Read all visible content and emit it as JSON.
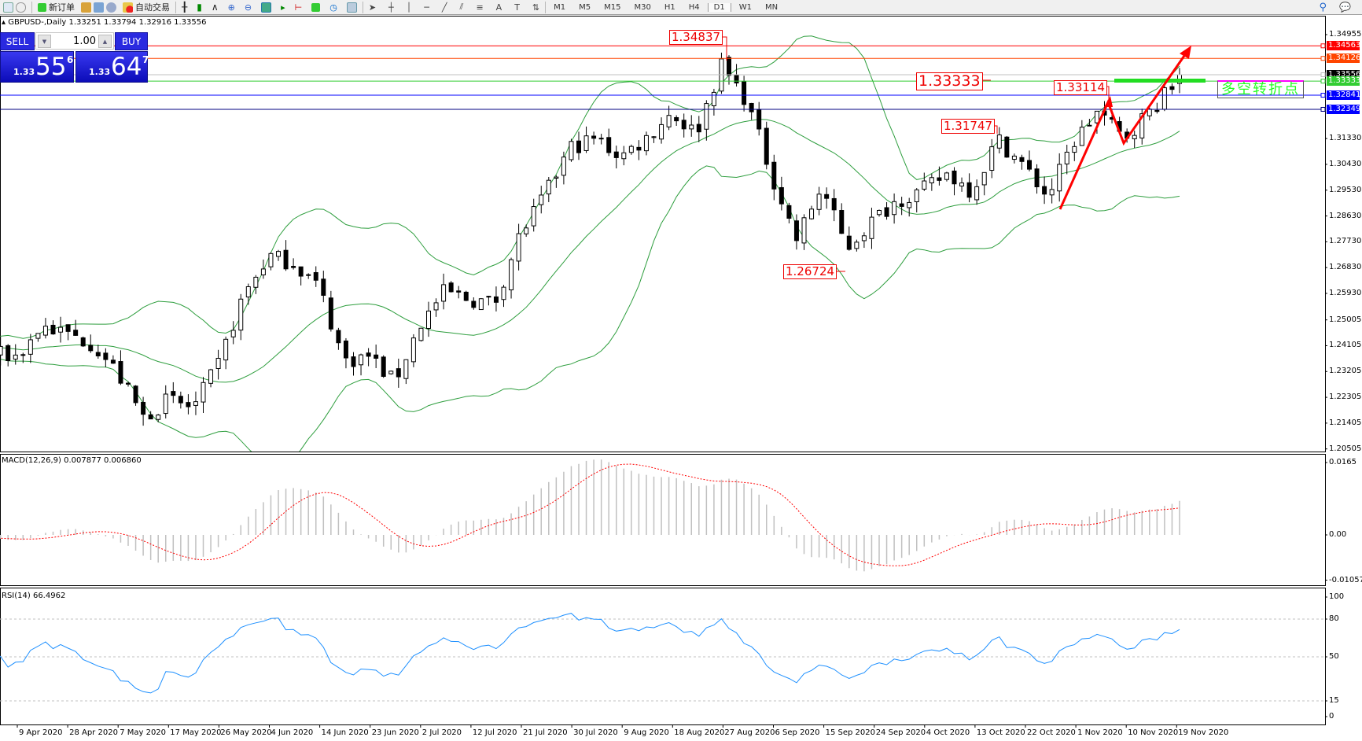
{
  "toolbar": {
    "new_order": "新订单",
    "auto_trading": "自动交易",
    "icons": [
      "new-chart-icon",
      "zoom-icon",
      "new-order-icon",
      "market-watch-icon",
      "navigator-icon",
      "signals-icon",
      "auto-trading-icon",
      "bar-chart-icon",
      "candlestick-icon",
      "line-chart-icon",
      "zoom-in-icon",
      "zoom-out-icon",
      "tile-icon",
      "autoscroll-icon",
      "chart-shift-icon",
      "indicators-icon",
      "periods-icon",
      "templates-icon",
      "cursor-icon",
      "crosshair-icon",
      "vertical-line-icon",
      "horizontal-line-icon",
      "trendline-icon",
      "equidistant-channel-icon",
      "fibonacci-icon",
      "text-icon",
      "text-label-icon",
      "arrows-icon"
    ],
    "timeframes": [
      "M1",
      "M5",
      "M15",
      "M30",
      "H1",
      "H4",
      "D1",
      "W1",
      "MN"
    ],
    "selected_timeframe": "D1"
  },
  "header": {
    "symbol": "GBPUSD-,Daily",
    "ohlc": "1.33251 1.33794 1.32916 1.33556"
  },
  "trade_panel": {
    "sell_label": "SELL",
    "buy_label": "BUY",
    "lot": "1.00",
    "sell_price": {
      "small": "1.33",
      "big": "55",
      "sup": "6"
    },
    "buy_price": {
      "small": "1.33",
      "big": "64",
      "sup": "7"
    }
  },
  "price_axis": [
    "1.34955",
    "1.31330",
    "1.30430",
    "1.29530",
    "1.28630",
    "1.27730",
    "1.26830",
    "1.25930",
    "1.25005",
    "1.24105",
    "1.23205",
    "1.22305",
    "1.21405",
    "1.20505"
  ],
  "price_lines": [
    {
      "price": "1.34563",
      "color": "#ff0000"
    },
    {
      "price": "1.34126",
      "color": "#ff4500"
    },
    {
      "price": "1.33556",
      "color": "#c0c0c0",
      "label_bg": "#000000"
    },
    {
      "price": "1.33333",
      "color": "#32cd32"
    },
    {
      "price": "1.32841",
      "color": "#0000ff"
    },
    {
      "price": "1.32349",
      "color": "#000080",
      "label_bg": "#0000ff"
    }
  ],
  "annotations": {
    "high": "1.34837",
    "pivot": "1.33333",
    "recent_high": "1.33114",
    "oct_high": "1.31747",
    "sep_low": "1.26724",
    "pivot_text": "多空转折点"
  },
  "date_axis": [
    "9 Apr 2020",
    "28 Apr 2020",
    "7 May 2020",
    "17 May 2020",
    "26 May 2020",
    "4 Jun 2020",
    "14 Jun 2020",
    "23 Jun 2020",
    "2 Jul 2020",
    "12 Jul 2020",
    "21 Jul 2020",
    "30 Jul 2020",
    "9 Aug 2020",
    "18 Aug 2020",
    "27 Aug 2020",
    "6 Sep 2020",
    "15 Sep 2020",
    "24 Sep 2020",
    "4 Oct 2020",
    "13 Oct 2020",
    "22 Oct 2020",
    "1 Nov 2020",
    "10 Nov 2020",
    "19 Nov 2020"
  ],
  "approx_closes": [
    1.2374,
    1.248,
    1.245,
    1.242,
    1.2313,
    1.2162,
    1.2222,
    1.2192,
    1.2344,
    1.2586,
    1.2723,
    1.27,
    1.2616,
    1.2359,
    1.2374,
    1.2283,
    1.248,
    1.26,
    1.2571,
    1.256,
    1.2798,
    1.2935,
    1.3102,
    1.3132,
    1.3071,
    1.3132,
    1.3223,
    1.315,
    1.3389,
    1.327,
    1.3011,
    1.278,
    1.2965,
    1.275,
    1.2844,
    1.292,
    1.295,
    1.3011,
    1.295,
    1.3132,
    1.3041,
    1.293,
    1.3117,
    1.323,
    1.3132,
    1.3223,
    1.3314,
    1.33556
  ],
  "macd": {
    "label": "MACD(12,26,9) 0.007877 0.006860",
    "axis": [
      "0.0165",
      "0.00",
      "-0.010571"
    ]
  },
  "rsi": {
    "label": "RSI(14) 66.4962",
    "axis": [
      "100",
      "80",
      "50",
      "15",
      "0"
    ]
  },
  "colors": {
    "bands": "#2e9e3e",
    "macd_hist": "#c0c0c0",
    "macd_signal": "#ff0000",
    "rsi": "#1e90ff",
    "arrow": "#ff0000"
  }
}
